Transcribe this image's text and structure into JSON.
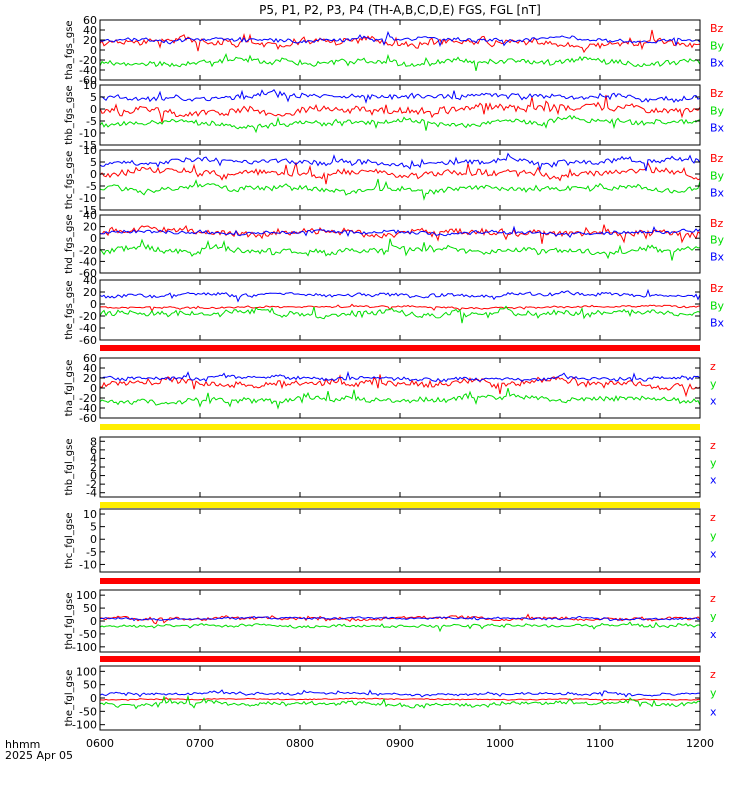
{
  "title": "P5, P1, P2, P3, P4 (TH-A,B,C,D,E) FGS, FGL [nT]",
  "axis": {
    "x_unit_label": "hhmm",
    "date_label": "2025 Apr 05",
    "tick_labels": [
      "0600",
      "0700",
      "0800",
      "0900",
      "1000",
      "1100",
      "1200"
    ]
  },
  "chart_data": [
    {
      "type": "line",
      "ylabel": "tha_fgs_gse",
      "ytick_labels": [
        "-60",
        "-40",
        "-20",
        "0",
        "20",
        "40",
        "60"
      ],
      "ylim": [
        -60,
        60
      ],
      "series": [
        {
          "name": "Bz",
          "color": "#ff0000",
          "level": 15,
          "amp": 18
        },
        {
          "name": "By",
          "color": "#00dd00",
          "level": -25,
          "amp": 15
        },
        {
          "name": "Bx",
          "color": "#0000ff",
          "level": 20,
          "amp": 10
        }
      ]
    },
    {
      "type": "line",
      "ylabel": "thb_fgs_gse",
      "ytick_labels": [
        "-15",
        "-10",
        "-5",
        "0",
        "5",
        "10"
      ],
      "ylim": [
        -15,
        10
      ],
      "series": [
        {
          "name": "Bz",
          "color": "#ff0000",
          "level": 0,
          "amp": 4
        },
        {
          "name": "By",
          "color": "#00dd00",
          "level": -6,
          "amp": 3
        },
        {
          "name": "Bx",
          "color": "#0000ff",
          "level": 5,
          "amp": 3
        }
      ]
    },
    {
      "type": "line",
      "ylabel": "thc_fgs_gse",
      "ytick_labels": [
        "-15",
        "-10",
        "-5",
        "0",
        "5",
        "10"
      ],
      "ylim": [
        -15,
        10
      ],
      "series": [
        {
          "name": "Bz",
          "color": "#ff0000",
          "level": 1,
          "amp": 4
        },
        {
          "name": "By",
          "color": "#00dd00",
          "level": -6,
          "amp": 3
        },
        {
          "name": "Bx",
          "color": "#0000ff",
          "level": 5,
          "amp": 3
        }
      ]
    },
    {
      "type": "line",
      "ylabel": "thd_fgs_gse",
      "ytick_labels": [
        "-60",
        "-40",
        "-20",
        "0",
        "20",
        "40"
      ],
      "ylim": [
        -60,
        40
      ],
      "series": [
        {
          "name": "Bz",
          "color": "#ff0000",
          "level": 10,
          "amp": 16
        },
        {
          "name": "By",
          "color": "#00dd00",
          "level": -20,
          "amp": 14
        },
        {
          "name": "Bx",
          "color": "#0000ff",
          "level": 10,
          "amp": 8
        }
      ]
    },
    {
      "type": "line",
      "ylabel": "the_fgs_gse",
      "ytick_labels": [
        "-60",
        "-40",
        "-20",
        "0",
        "20",
        "40"
      ],
      "ylim": [
        -60,
        40
      ],
      "series": [
        {
          "name": "Bz",
          "color": "#ff0000",
          "level": -5,
          "amp": 4
        },
        {
          "name": "By",
          "color": "#00dd00",
          "level": -15,
          "amp": 14
        },
        {
          "name": "Bx",
          "color": "#0000ff",
          "level": 15,
          "amp": 8
        }
      ]
    },
    {
      "type": "line",
      "ylabel": "tha_fgl_gse",
      "ytick_labels": [
        "-60",
        "-40",
        "-20",
        "0",
        "20",
        "40",
        "60"
      ],
      "ylim": [
        -60,
        60
      ],
      "series": [
        {
          "name": "z",
          "color": "#ff0000",
          "level": 10,
          "amp": 18
        },
        {
          "name": "y",
          "color": "#00dd00",
          "level": -25,
          "amp": 15
        },
        {
          "name": "x",
          "color": "#0000ff",
          "level": 20,
          "amp": 10
        }
      ]
    },
    {
      "type": "line",
      "ylabel": "thb_fgl_gse",
      "ytick_labels": [
        "-4",
        "-2",
        "0",
        "2",
        "4",
        "6",
        "8"
      ],
      "ylim": [
        -5,
        9
      ],
      "series": [
        {
          "name": "z",
          "color": "#ff0000"
        },
        {
          "name": "y",
          "color": "#00dd00"
        },
        {
          "name": "x",
          "color": "#0000ff"
        }
      ]
    },
    {
      "type": "line",
      "ylabel": "thc_fgl_gse",
      "ytick_labels": [
        "-10",
        "-5",
        "0",
        "5",
        "10"
      ],
      "ylim": [
        -13,
        12
      ],
      "series": [
        {
          "name": "z",
          "color": "#ff0000"
        },
        {
          "name": "y",
          "color": "#00dd00"
        },
        {
          "name": "x",
          "color": "#0000ff"
        }
      ]
    },
    {
      "type": "line",
      "ylabel": "thd_fgl_gse",
      "ytick_labels": [
        "-100",
        "-50",
        "0",
        "50",
        "100"
      ],
      "ylim": [
        -120,
        120
      ],
      "series": [
        {
          "name": "z",
          "color": "#ff0000",
          "level": 10,
          "amp": 18
        },
        {
          "name": "y",
          "color": "#00dd00",
          "level": -20,
          "amp": 15
        },
        {
          "name": "x",
          "color": "#0000ff",
          "level": 10,
          "amp": 10
        }
      ]
    },
    {
      "type": "line",
      "ylabel": "the_fgl_gse",
      "ytick_labels": [
        "-100",
        "-50",
        "0",
        "50",
        "100"
      ],
      "ylim": [
        -120,
        120
      ],
      "series": [
        {
          "name": "z",
          "color": "#ff0000",
          "level": -5,
          "amp": 5
        },
        {
          "name": "y",
          "color": "#00dd00",
          "level": -20,
          "amp": 20
        },
        {
          "name": "x",
          "color": "#0000ff",
          "level": 15,
          "amp": 12
        }
      ]
    }
  ]
}
